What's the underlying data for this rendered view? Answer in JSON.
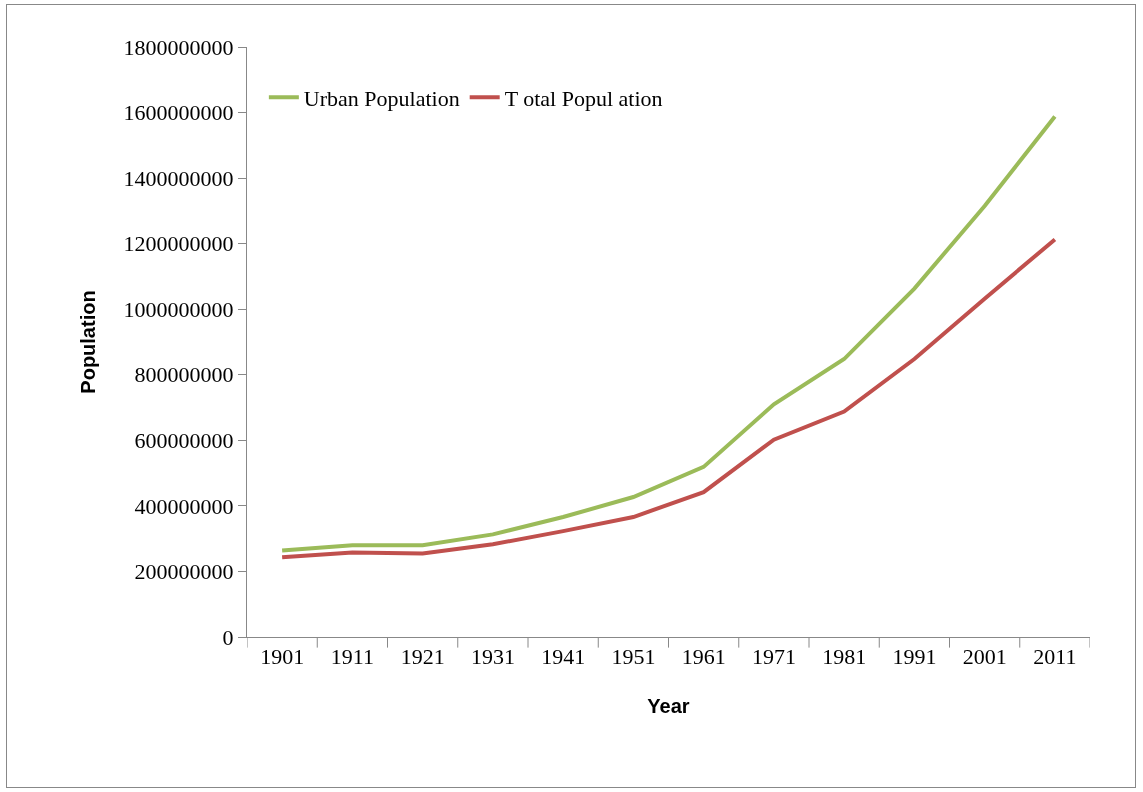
{
  "chart_data": {
    "type": "line",
    "xlabel": "Year",
    "ylabel": "Population",
    "categories": [
      "1901",
      "1911",
      "1921",
      "1931",
      "1941",
      "1951",
      "1961",
      "1971",
      "1981",
      "1991",
      "2001",
      "2011"
    ],
    "series": [
      {
        "name": "Urban Population",
        "color": "#9bbb59",
        "values": [
          264000000,
          280000000,
          280000000,
          313000000,
          366000000,
          427000000,
          519000000,
          710000000,
          848000000,
          1063000000,
          1315000000,
          1588000000
        ]
      },
      {
        "name": "T otal Popul ation",
        "color": "#c0504d",
        "values": [
          243000000,
          258000000,
          255000000,
          283000000,
          323000000,
          366000000,
          442000000,
          602000000,
          688000000,
          848000000,
          1032000000,
          1213000000
        ]
      }
    ],
    "ylim": [
      0,
      1800000000
    ],
    "yticks": [
      0,
      200000000,
      400000000,
      600000000,
      800000000,
      1000000000,
      1200000000,
      1400000000,
      1600000000,
      1800000000
    ],
    "grid": false,
    "legend": "top left",
    "marker": "none",
    "line_style": "solid"
  }
}
